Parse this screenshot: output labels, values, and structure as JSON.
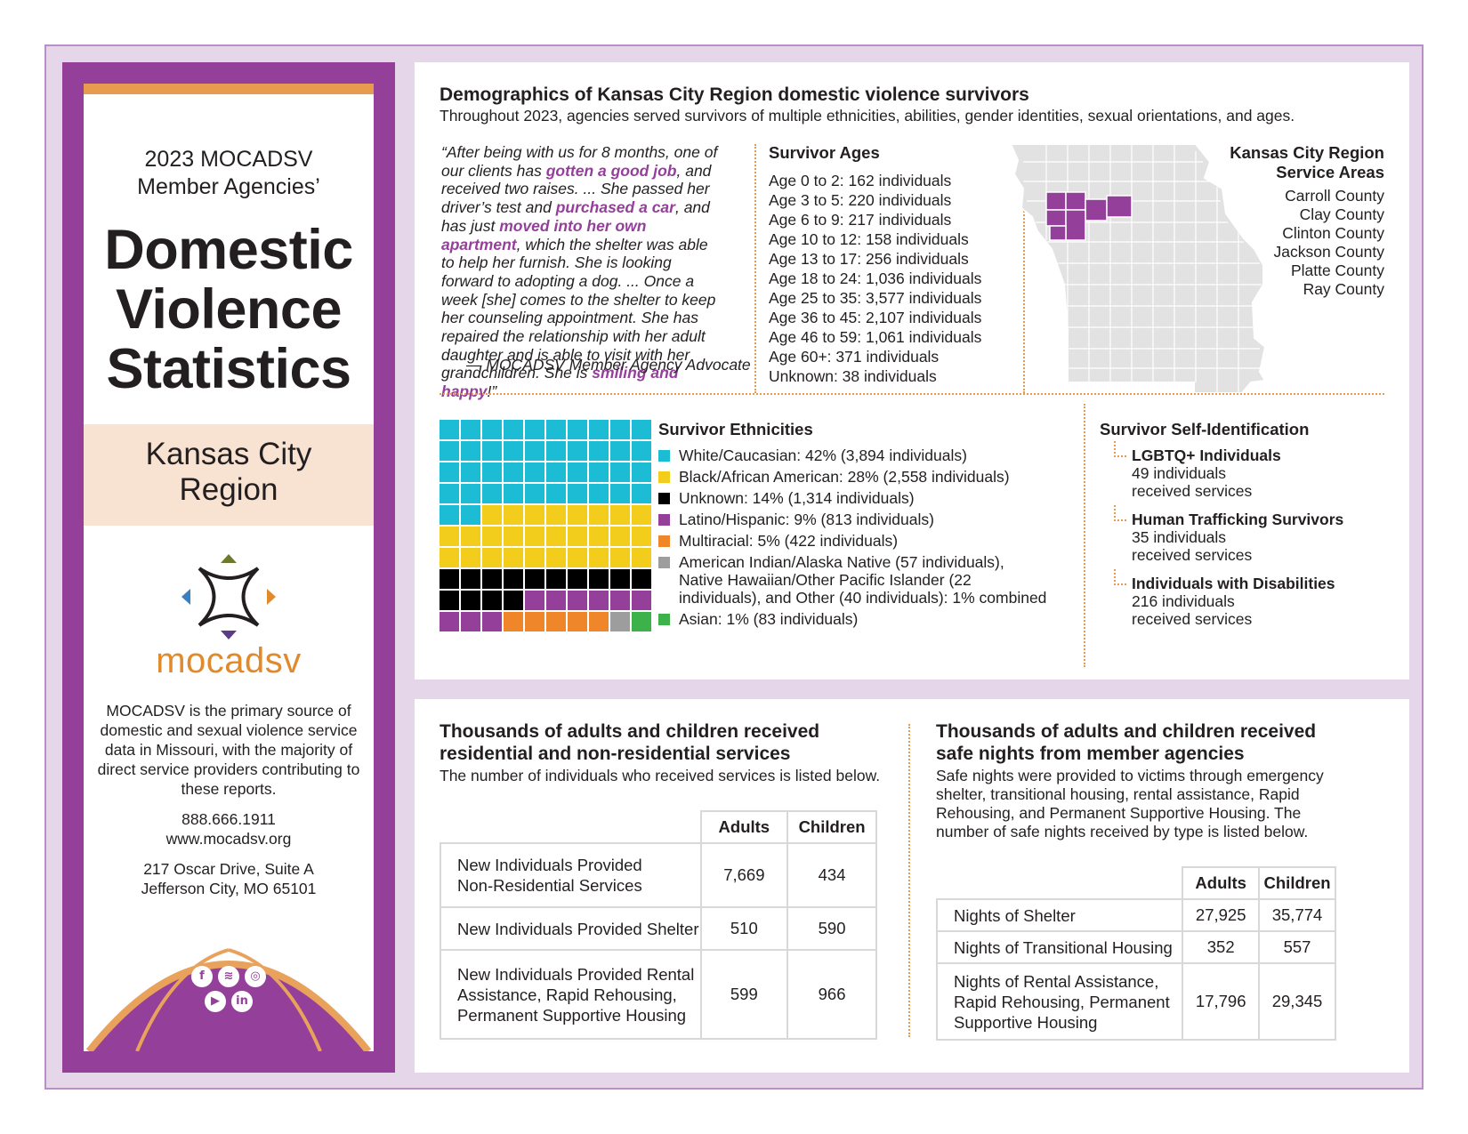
{
  "sidebar": {
    "subtitle_line1": "2023 MOCADSV",
    "subtitle_line2": "Member Agencies’",
    "title_line1": "Domestic",
    "title_line2": "Violence",
    "title_line3": "Statistics",
    "region_line1": "Kansas City",
    "region_line2": "Region",
    "logo_word": "mocadsv",
    "about": "MOCADSV is the primary source of domestic and sexual violence service data in Missouri, with the majority of direct service providers contributing to these reports.",
    "phone": "888.666.1911",
    "website": "www.mocadsv.org",
    "address_line1": "217 Oscar Drive, Suite A",
    "address_line2": "Jefferson City, MO 65101",
    "social_icons": [
      "facebook-icon",
      "spotify-icon",
      "instagram-icon",
      "youtube-icon",
      "linkedin-icon"
    ]
  },
  "demographics": {
    "title": "Demographics of Kansas City Region domestic violence survivors",
    "subtitle": "Throughout 2023, agencies served survivors of multiple ethnicities, abilities, gender identities, sexual orientations, and ages.",
    "quote": [
      {
        "t": "“After being with us for 8 months, one of our clients has "
      },
      {
        "t": "gotten a good job",
        "b": true
      },
      {
        "t": ", and received two raises. ... She passed her driver’s test and "
      },
      {
        "t": "purchased a car",
        "b": true
      },
      {
        "t": ", and has just "
      },
      {
        "t": "moved into her own apartment",
        "b": true
      },
      {
        "t": ", which the shelter was able to help her furnish. She is looking forward to adopting a dog. ... Once a week [she] comes to the shelter to keep her counseling appointment. She has repaired the relationship with her adult daughter and is able to visit with her grandchildren. She is "
      },
      {
        "t": "smiling and happy",
        "b": true
      },
      {
        "t": "!”"
      }
    ],
    "quote_attribution": "— MOCADSV Member Agency Advocate",
    "ages_title": "Survivor Ages",
    "ages": [
      "Age 0 to 2: 162 individuals",
      "Age 3 to 5: 220 individuals",
      "Age 6 to 9: 217 individuals",
      "Age 10 to 12: 158 individuals",
      "Age 13 to 17: 256 individuals",
      "Age 18 to 24: 1,036 individuals",
      "Age 25 to 35: 3,577 individuals",
      "Age 36 to 45: 2,107 individuals",
      "Age 46 to 59: 1,061 individuals",
      "Age 60+: 371 individuals",
      "Unknown: 38 individuals"
    ],
    "map_title_line1": "Kansas City Region",
    "map_title_line2": "Service Areas",
    "counties": [
      "Carroll County",
      "Clay County",
      "Clinton County",
      "Jackson County",
      "Platte County",
      "Ray County"
    ],
    "map_colors": {
      "state": "#e2e2e2",
      "region": "#94409a"
    },
    "ethnicities_title": "Survivor Ethnicities",
    "ethnicities": [
      {
        "label": "White/Caucasian: 42% (3,894 individuals)",
        "color": "#1bbcd4",
        "cells": 42
      },
      {
        "label": "Black/African American: 28% (2,558 individuals)",
        "color": "#f3cd1b",
        "cells": 28
      },
      {
        "label": "Unknown: 14% (1,314 individuals)",
        "color": "#000000",
        "cells": 14
      },
      {
        "label": "Latino/Hispanic: 9% (813 individuals)",
        "color": "#94409a",
        "cells": 9
      },
      {
        "label": "Multiracial: 5% (422 individuals)",
        "color": "#f0862a",
        "cells": 5
      },
      {
        "label": "American Indian/Alaska Native (57 individuals), Native Hawaiian/Other Pacific Islander (22 individuals), and Other (40 individuals): 1% combined",
        "color": "#9d9d9d",
        "cells": 1
      },
      {
        "label": "Asian: 1% (83 individuals)",
        "color": "#3db14a",
        "cells": 1
      }
    ],
    "self_id_title": "Survivor Self-Identification",
    "self_id": [
      {
        "title": "LGBTQ+ Individuals",
        "line1": "49 individuals",
        "line2": "received services"
      },
      {
        "title": "Human Trafficking Survivors",
        "line1": "35 individuals",
        "line2": "received services"
      },
      {
        "title": "Individuals with Disabilities",
        "line1": "216 individuals",
        "line2": "received services"
      }
    ]
  },
  "services": {
    "title_line1": "Thousands of adults and children received",
    "title_line2": "residential and non-residential services",
    "subtitle": "The number of individuals who received services is listed below.",
    "col_adults": "Adults",
    "col_children": "Children",
    "rows": [
      {
        "label_lines": [
          "New Individuals Provided",
          "Non-Residential Services"
        ],
        "adults": "7,669",
        "children": "434"
      },
      {
        "label_lines": [
          "New Individuals Provided Shelter"
        ],
        "adults": "510",
        "children": "590"
      },
      {
        "label_lines": [
          "New Individuals Provided Rental",
          "Assistance, Rapid Rehousing,",
          "Permanent Supportive Housing"
        ],
        "adults": "599",
        "children": "966"
      }
    ]
  },
  "safe_nights": {
    "title_line1": "Thousands of adults and children received",
    "title_line2": "safe nights from member agencies",
    "subtitle": "Safe nights were provided to victims through emergency shelter, transitional housing, rental assistance, Rapid Rehousing, and Permanent Supportive Housing. The number of safe nights received by type is listed below.",
    "col_adults": "Adults",
    "col_children": "Children",
    "rows": [
      {
        "label_lines": [
          "Nights of Shelter"
        ],
        "adults": "27,925",
        "children": "35,774"
      },
      {
        "label_lines": [
          "Nights of Transitional Housing"
        ],
        "adults": "352",
        "children": "557"
      },
      {
        "label_lines": [
          "Nights of Rental Assistance,",
          "Rapid Rehousing, Permanent",
          "Supportive Housing"
        ],
        "adults": "17,796",
        "children": "29,345"
      }
    ]
  }
}
